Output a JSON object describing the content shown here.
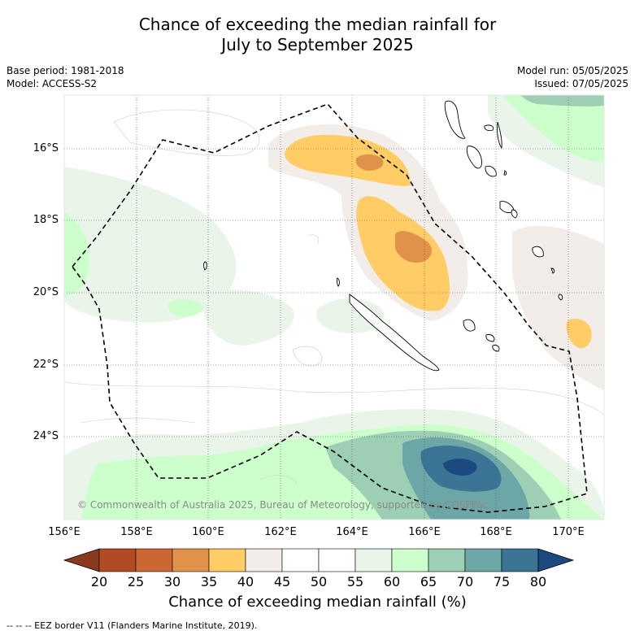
{
  "title_line1": "Chance of exceeding the median rainfall for",
  "title_line2": "July to September 2025",
  "base_period": "Base period: 1981-2018",
  "model": "Model: ACCESS-S2",
  "model_run": "Model run: 05/05/2025",
  "issued": "Issued: 07/05/2025",
  "lat_labels": [
    "16°S",
    "18°S",
    "20°S",
    "22°S",
    "24°S"
  ],
  "lon_labels": [
    "156°E",
    "158°E",
    "160°E",
    "162°E",
    "164°E",
    "166°E",
    "168°E",
    "170°E"
  ],
  "copyright": "© Commonwealth of Australia 2025, Bureau of Meteorology, supported by COSPPac",
  "colorbar": {
    "ticks": [
      "20",
      "25",
      "30",
      "35",
      "40",
      "45",
      "50",
      "55",
      "60",
      "65",
      "70",
      "75",
      "80"
    ],
    "colors": [
      "#8b3a1e",
      "#b24a24",
      "#cc6633",
      "#e0924a",
      "#ffcc66",
      "#f2ede8",
      "#ffffff",
      "#ffffff",
      "#eaf5ea",
      "#ccffcc",
      "#9ccfb4",
      "#6da6a6",
      "#3b7596",
      "#1c4a80"
    ],
    "title": "Chance of exceeding median rainfall (%)"
  },
  "footer": "-- -- -- EEZ border V11 (Flanders Marine Institute, 2019)."
}
